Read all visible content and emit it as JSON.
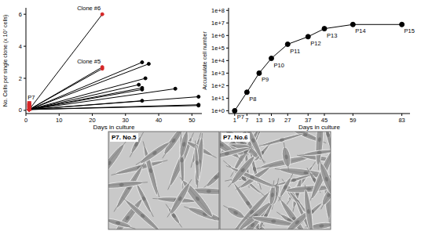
{
  "chart_data": [
    {
      "type": "line",
      "y_label": "No. Cells per single clone (x 10⁷ cells)",
      "x_label": "Days in culture",
      "xlim": [
        0,
        53
      ],
      "ylim": [
        -0.2,
        6.4
      ],
      "xticks": [
        0,
        10,
        20,
        30,
        40,
        50
      ],
      "yticks": [
        0,
        2,
        4,
        6
      ],
      "grid": false,
      "annotations": [
        {
          "text": "Clone #6",
          "x": 23,
          "y": 6.0
        },
        {
          "text": "Clone #5",
          "x": 23,
          "y": 2.7
        },
        {
          "text": "P7",
          "x": 1,
          "y": 0.45
        }
      ],
      "series": [
        {
          "x": [
            1,
            23
          ],
          "values": [
            0.05,
            6.0
          ],
          "color": "#000000",
          "colors": [
            "#d62728",
            "#d62728"
          ],
          "marker": "circle",
          "line_style": "solid"
        },
        {
          "x": [
            1,
            23
          ],
          "values": [
            0.05,
            2.7
          ],
          "color": "#000000",
          "colors": [
            "#d62728",
            "#d62728"
          ],
          "marker": "circle",
          "line_style": "solid"
        },
        {
          "x": [
            1,
            23
          ],
          "values": [
            0.05,
            2.6
          ],
          "color": "#000000",
          "colors": [
            "#d62728",
            "#d62728"
          ],
          "marker": "circle",
          "line_style": "solid"
        },
        {
          "x": [
            1,
            35
          ],
          "values": [
            0.05,
            3.0
          ],
          "color": "#000000",
          "colors": [
            "#d62728",
            "#000000"
          ],
          "marker": "circle",
          "line_style": "solid"
        },
        {
          "x": [
            1,
            37
          ],
          "values": [
            0.05,
            2.9
          ],
          "color": "#000000",
          "colors": [
            "#d62728",
            "#000000"
          ],
          "marker": "circle",
          "line_style": "solid"
        },
        {
          "x": [
            1,
            36
          ],
          "values": [
            0.05,
            2.0
          ],
          "color": "#000000",
          "colors": [
            "#d62728",
            "#000000"
          ],
          "marker": "circle",
          "line_style": "solid"
        },
        {
          "x": [
            1,
            34
          ],
          "values": [
            0.05,
            1.6
          ],
          "color": "#000000",
          "colors": [
            "#d62728",
            "#000000"
          ],
          "marker": "circle",
          "line_style": "solid"
        },
        {
          "x": [
            1,
            35
          ],
          "values": [
            0.05,
            1.4
          ],
          "color": "#000000",
          "colors": [
            "#d62728",
            "#000000"
          ],
          "marker": "circle",
          "line_style": "solid"
        },
        {
          "x": [
            1,
            35
          ],
          "values": [
            0.05,
            1.3
          ],
          "color": "#000000",
          "colors": [
            "#d62728",
            "#000000"
          ],
          "marker": "circle",
          "line_style": "solid"
        },
        {
          "x": [
            1,
            45
          ],
          "values": [
            0.05,
            1.35
          ],
          "color": "#000000",
          "colors": [
            "#d62728",
            "#000000"
          ],
          "marker": "circle",
          "line_style": "solid"
        },
        {
          "x": [
            1,
            52
          ],
          "values": [
            0.05,
            0.85
          ],
          "color": "#000000",
          "colors": [
            "#d62728",
            "#000000"
          ],
          "marker": "circle",
          "line_style": "solid"
        },
        {
          "x": [
            1,
            35
          ],
          "values": [
            0.05,
            0.6
          ],
          "color": "#000000",
          "colors": [
            "#d62728",
            "#000000"
          ],
          "marker": "circle",
          "line_style": "solid"
        },
        {
          "x": [
            1,
            52
          ],
          "values": [
            0.05,
            0.35
          ],
          "color": "#000000",
          "colors": [
            "#d62728",
            "#000000"
          ],
          "marker": "circle",
          "line_style": "solid"
        },
        {
          "x": [
            1,
            52
          ],
          "values": [
            0.05,
            0.3
          ],
          "color": "#000000",
          "colors": [
            "#d62728",
            "#000000"
          ],
          "marker": "circle",
          "line_style": "solid"
        },
        {
          "type": "scatter",
          "x": [
            1,
            1,
            1,
            1
          ],
          "values": [
            0.15,
            0.25,
            0.35,
            0.45
          ],
          "color": "#d62728",
          "marker": "square"
        }
      ]
    },
    {
      "type": "line",
      "log": "y",
      "y_label": "Accumulate cell number",
      "x_label": "Days in culture",
      "xlim": [
        -2,
        87
      ],
      "ylim": [
        0.6,
        160000000
      ],
      "xticks": [
        1,
        7,
        13,
        19,
        27,
        37,
        45,
        59,
        83
      ],
      "yticks": [
        {
          "value": 1,
          "label": "1e+0"
        },
        {
          "value": 10,
          "label": "1e+1"
        },
        {
          "value": 100,
          "label": "1e+2"
        },
        {
          "value": 1000,
          "label": "1e+3"
        },
        {
          "value": 10000,
          "label": "1e+4"
        },
        {
          "value": 100000,
          "label": "1e+5"
        },
        {
          "value": 1000000,
          "label": "1e+6"
        },
        {
          "value": 10000000,
          "label": "1e+7"
        },
        {
          "value": 100000000,
          "label": "1e+8"
        }
      ],
      "grid": false,
      "series": [
        {
          "x": [
            1,
            7,
            13,
            19,
            27,
            37,
            45,
            59,
            83
          ],
          "values": [
            1,
            30,
            1000,
            15000,
            200000,
            800000,
            3500000,
            7500000,
            7500000
          ],
          "point_labels": [
            "P7",
            "P8",
            "P9",
            "P10",
            "P11",
            "P12",
            "P13",
            "P14",
            "P15"
          ],
          "color": "#000000",
          "marker": "circle",
          "line_style": "solid"
        }
      ]
    }
  ],
  "images": [
    {
      "label": "P7. No.5"
    },
    {
      "label": "P7. No.6"
    }
  ]
}
